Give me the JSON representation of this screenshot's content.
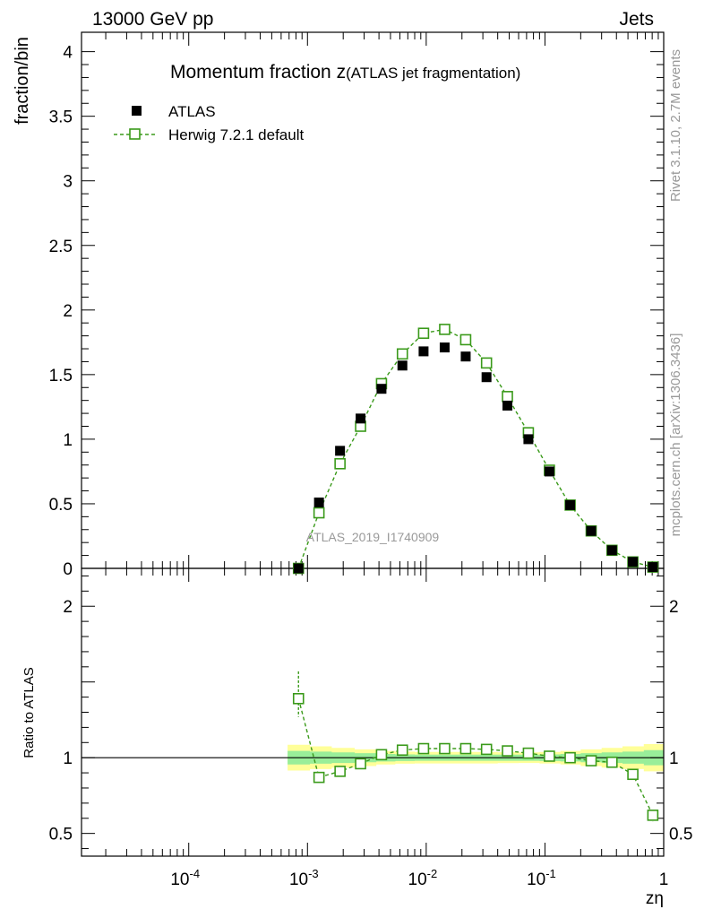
{
  "header": {
    "left": "13000 GeV pp",
    "right": "Jets"
  },
  "side_labels": {
    "rivet": "Rivet 3.1.10,  2.7M events",
    "mcplots": "mcplots.cern.ch [arXiv:1306.3436]"
  },
  "chart_data": [
    {
      "type": "scatter",
      "panel": "main",
      "title_main": "Momentum fraction z",
      "title_sub": "(ATLAS jet fragmentation)",
      "ylabel": "fraction/bin",
      "watermark": "ATLAS_2019_I1740909",
      "x_scale": "log",
      "xlim": [
        1.25e-05,
        1
      ],
      "ylim": [
        0,
        4.15
      ],
      "y_ticks": [
        0,
        0.5,
        1,
        1.5,
        2,
        2.5,
        3,
        3.5,
        4
      ],
      "y_tick_labels": [
        "0",
        "0.5",
        "1",
        "1.5",
        "2",
        "2.5",
        "3",
        "3.5",
        "4"
      ],
      "legend": [
        {
          "name": "ATLAS",
          "marker": "filled-square",
          "color": "#000000"
        },
        {
          "name": "Herwig 7.2.1 default",
          "marker": "open-square",
          "line": "dashed",
          "color": "#3a9a1a"
        }
      ],
      "series": [
        {
          "name": "ATLAS",
          "x": [
            0.00084,
            0.00125,
            0.00188,
            0.0028,
            0.0042,
            0.0063,
            0.0095,
            0.0143,
            0.0215,
            0.0322,
            0.0483,
            0.0725,
            0.109,
            0.163,
            0.245,
            0.367,
            0.55,
            0.81
          ],
          "y": [
            0.0,
            0.51,
            0.91,
            1.16,
            1.39,
            1.57,
            1.68,
            1.71,
            1.64,
            1.48,
            1.26,
            1.0,
            0.75,
            0.49,
            0.29,
            0.14,
            0.05,
            0.01
          ]
        },
        {
          "name": "Herwig 7.2.1 default",
          "x": [
            0.00084,
            0.00125,
            0.00188,
            0.0028,
            0.0042,
            0.0063,
            0.0095,
            0.0143,
            0.0215,
            0.0322,
            0.0483,
            0.0725,
            0.109,
            0.163,
            0.245,
            0.367,
            0.55,
            0.81
          ],
          "y": [
            0.0,
            0.43,
            0.81,
            1.1,
            1.43,
            1.66,
            1.82,
            1.85,
            1.77,
            1.59,
            1.33,
            1.05,
            0.76,
            0.49,
            0.29,
            0.14,
            0.05,
            0.01
          ]
        }
      ]
    },
    {
      "type": "scatter",
      "panel": "ratio",
      "ylabel": "Ratio to ATLAS",
      "xlabel": "zη",
      "x_scale": "log",
      "xlim": [
        1.25e-05,
        1
      ],
      "ylim": [
        0.35,
        2.25
      ],
      "y_ticks": [
        0.5,
        1,
        2
      ],
      "y_tick_labels": [
        "0.5",
        "1",
        "2"
      ],
      "x_ticks": [
        0.0001,
        0.001,
        0.01,
        0.1,
        1
      ],
      "x_tick_labels": [
        "10^-4",
        "10^-3",
        "10^-2",
        "10^-1",
        "1"
      ],
      "band_x": [
        0.00068,
        0.00105,
        0.0016,
        0.0025,
        0.0038,
        0.0055,
        0.008,
        0.012,
        0.018,
        0.027,
        0.04,
        0.06,
        0.09,
        0.135,
        0.2,
        0.3,
        0.45,
        0.68,
        1.0
      ],
      "band_inner": [
        0.045,
        0.04,
        0.035,
        0.03,
        0.025,
        0.022,
        0.02,
        0.02,
        0.02,
        0.02,
        0.02,
        0.02,
        0.022,
        0.025,
        0.03,
        0.035,
        0.04,
        0.05,
        0.05
      ],
      "band_outer": [
        0.085,
        0.075,
        0.065,
        0.055,
        0.045,
        0.04,
        0.038,
        0.038,
        0.038,
        0.038,
        0.036,
        0.035,
        0.038,
        0.045,
        0.055,
        0.065,
        0.075,
        0.09,
        0.09
      ],
      "series": [
        {
          "name": "Herwig 7.2.1 default",
          "x": [
            0.00084,
            0.00125,
            0.00188,
            0.0028,
            0.0042,
            0.0063,
            0.0095,
            0.0143,
            0.0215,
            0.0322,
            0.0483,
            0.0725,
            0.109,
            0.163,
            0.245,
            0.367,
            0.55,
            0.81
          ],
          "y": [
            1.39,
            0.87,
            0.91,
            0.96,
            1.02,
            1.05,
            1.06,
            1.06,
            1.06,
            1.055,
            1.045,
            1.03,
            1.01,
            1.0,
            0.98,
            0.97,
            0.89,
            0.62
          ],
          "err_hi": [
            0.18,
            0.01,
            0.01,
            0.01,
            0.01,
            0.005,
            0.005,
            0.005,
            0.005,
            0.005,
            0.005,
            0.005,
            0.005,
            0.005,
            0.005,
            0.005,
            0.01,
            0.02
          ],
          "err_lo": [
            0.12,
            0.01,
            0.01,
            0.01,
            0.01,
            0.005,
            0.005,
            0.005,
            0.005,
            0.005,
            0.005,
            0.005,
            0.005,
            0.005,
            0.005,
            0.005,
            0.01,
            0.04
          ]
        }
      ]
    }
  ]
}
